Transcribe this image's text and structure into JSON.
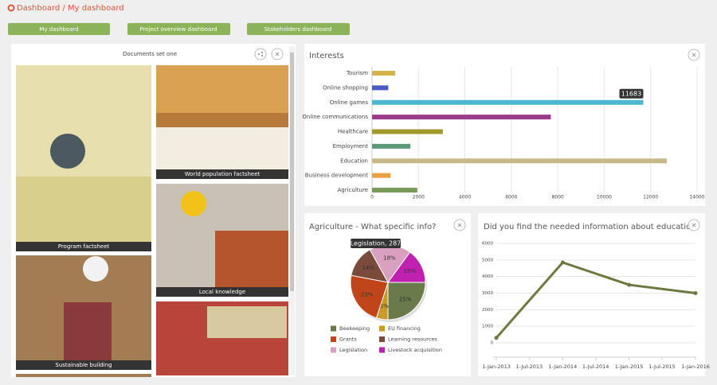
{
  "header": {
    "breadcrumb": "Dashboard / My dashboard",
    "buttons": [
      "My dashboard",
      "Project overview dashboard",
      "Stakeholders dashboard"
    ]
  },
  "documents": {
    "title": "Documents set one",
    "tiles": [
      "Program factsheet",
      "World population factsheet",
      "Local knowledge",
      "Sustainable building"
    ]
  },
  "chart_data": [
    {
      "type": "hbar",
      "title": "Interests",
      "categories": [
        "Tourism",
        "Online shopping",
        "Online games",
        "Online communications",
        "Healthcare",
        "Employment",
        "Education",
        "Business development",
        "Agriculture"
      ],
      "values": [
        1000,
        700,
        11683,
        7700,
        3050,
        1650,
        12700,
        800,
        1950
      ],
      "colors": [
        "#d4b44a",
        "#4a5cc4",
        "#4bb8d0",
        "#9b3b8a",
        "#a09a2a",
        "#5a9a78",
        "#c8b88a",
        "#e8a040",
        "#7a9a5a"
      ],
      "xlim": [
        0,
        14000
      ],
      "xticks": [
        0,
        2000,
        4000,
        6000,
        8000,
        10000,
        12000,
        14000
      ],
      "grid": true,
      "tooltip_index": 2
    },
    {
      "type": "pie",
      "title": "Agriculture - What specific info?",
      "categories": [
        "Beekeeping",
        "EU financing",
        "Grants",
        "Learning resources",
        "Legislation",
        "Livestock acquisition"
      ],
      "values": [
        25,
        5,
        23,
        14,
        18,
        15
      ],
      "value_labels": [
        "25%",
        "5%",
        "23%",
        "14%",
        "18%",
        "15%"
      ],
      "colors": [
        "#6a7a4a",
        "#c89a2a",
        "#c0451a",
        "#7a4a3a",
        "#d9a0c0",
        "#c020b0"
      ],
      "tooltip": "Legislation, 287",
      "legend": "bottom"
    },
    {
      "type": "line",
      "title": "Did you find the needed information about education?",
      "x": [
        "1-Jan-2013",
        "1-Jan-2014",
        "1-Jan-2015",
        "1-Jan-2016"
      ],
      "values": [
        300,
        4850,
        3500,
        3000
      ],
      "color": "#6b7a3e",
      "xlim": [
        "1-Jan-2013",
        "1-Jan-2016"
      ],
      "xticks": [
        "1-Jan-2013",
        "1-Jul-2013",
        "1-Jan-2014",
        "1-Jul-2014",
        "1-Jan-2015",
        "1-Jul-2015",
        "1-Jan-2016"
      ],
      "ylim": [
        0,
        6000
      ],
      "yticks": [
        0,
        1000,
        2000,
        3000,
        4000,
        5000,
        6000
      ],
      "grid": true
    }
  ]
}
